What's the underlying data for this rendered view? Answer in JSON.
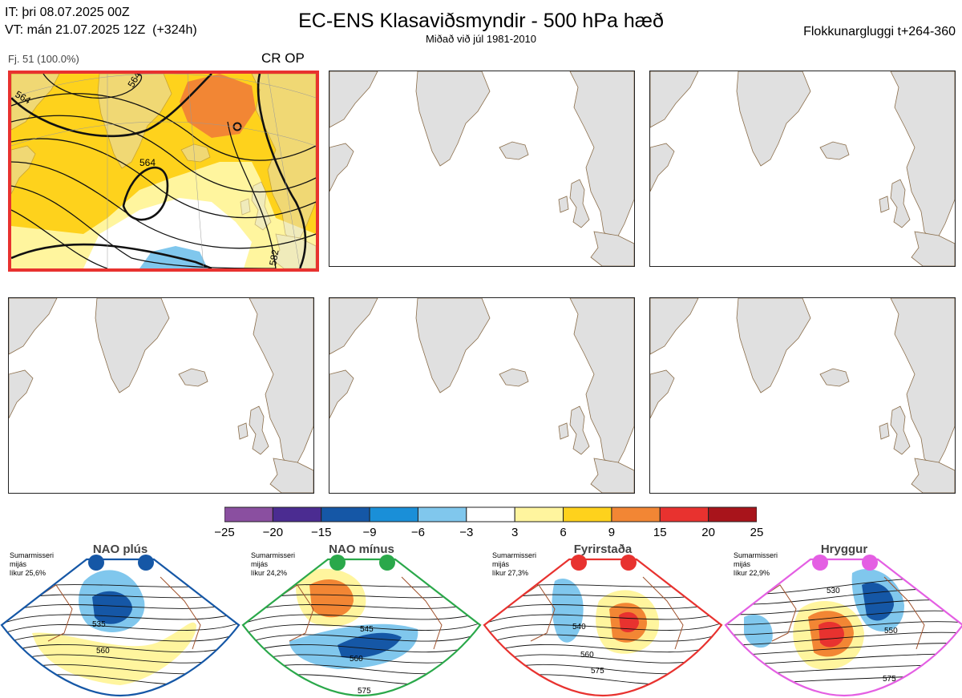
{
  "header": {
    "initial_time": "IT: þri 08.07.2025 00Z",
    "valid_time": "VT: mán 21.07.2025 12Z  (+324h)",
    "title": "EC-ENS Klasaviðsmyndir - 500 hPa hæð",
    "subtitle": "Miðað við júl 1981-2010",
    "window": "Flokkunargluggi t+264-360"
  },
  "cluster": {
    "label": "Fj. 51 (100.0%)",
    "tag": "CR OP"
  },
  "map_labels": {
    "contour_564_a": "564",
    "contour_564_b": "564",
    "contour_564_c": "564",
    "contour_582": "582"
  },
  "colorbar": {
    "ticks": [
      "−25",
      "−20",
      "−15",
      "−9",
      "−6",
      "−3",
      "3",
      "6",
      "9",
      "15",
      "20",
      "25"
    ],
    "colors": [
      "#8a4fa0",
      "#4b2c91",
      "#1557a6",
      "#1a8fd8",
      "#80c7ed",
      "#ffffff",
      "#fff59e",
      "#fed21c",
      "#f28634",
      "#e8322f",
      "#a8141b"
    ]
  },
  "regimes": [
    {
      "name": "NAO plús",
      "note": "Sumarmisseri\nmijás\nlíkur 25,6%",
      "color": "#1557a6",
      "labels": [
        "535",
        "560"
      ]
    },
    {
      "name": "NAO mínus",
      "note": "Sumarmisseri\nmijás\nlíkur 24,2%",
      "color": "#2aa84a",
      "labels": [
        "545",
        "560",
        "575"
      ]
    },
    {
      "name": "Fyrirstaða",
      "note": "Sumarmisseri\nmijás\nlíkur 27,3%",
      "color": "#e8322f",
      "labels": [
        "540",
        "560",
        "575"
      ]
    },
    {
      "name": "Hryggur",
      "note": "Sumarmisseri\nmijás\nlíkur 22,9%",
      "color": "#e45fe3",
      "labels": [
        "530",
        "550",
        "575"
      ]
    }
  ]
}
